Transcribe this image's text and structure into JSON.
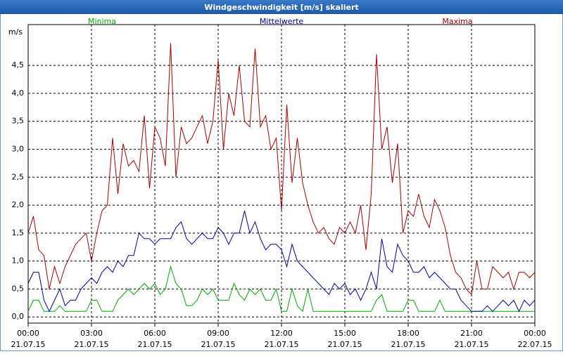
{
  "chart_data": {
    "type": "line",
    "title": "Windgeschwindigkeit [m/s] skaliert",
    "y_label": "m/s",
    "x": [
      0,
      0.25,
      0.5,
      0.75,
      1,
      1.25,
      1.5,
      1.75,
      2,
      2.25,
      2.5,
      2.75,
      3,
      3.25,
      3.5,
      3.75,
      4,
      4.25,
      4.5,
      4.75,
      5,
      5.25,
      5.5,
      5.75,
      6,
      6.25,
      6.5,
      6.75,
      7,
      7.25,
      7.5,
      7.75,
      8,
      8.25,
      8.5,
      8.75,
      9,
      9.25,
      9.5,
      9.75,
      10,
      10.25,
      10.5,
      10.75,
      11,
      11.25,
      11.5,
      11.75,
      12,
      12.25,
      12.5,
      12.75,
      13,
      13.25,
      13.5,
      13.75,
      14,
      14.25,
      14.5,
      14.75,
      15,
      15.25,
      15.5,
      15.75,
      16,
      16.25,
      16.5,
      16.75,
      17,
      17.25,
      17.5,
      17.75,
      18,
      18.25,
      18.5,
      18.75,
      19,
      19.25,
      19.5,
      19.75,
      20,
      20.25,
      20.5,
      20.75,
      21,
      21.25,
      21.5,
      21.75,
      22,
      22.25,
      22.5,
      22.75,
      23,
      23.25,
      23.5,
      23.75,
      24
    ],
    "series": [
      {
        "name": "Minima",
        "color": "#00aa00",
        "values": [
          0.1,
          0.3,
          0.3,
          0.1,
          0.1,
          0.1,
          0.2,
          0.1,
          0.1,
          0.1,
          0.1,
          0.1,
          0.3,
          0.3,
          0.1,
          0.1,
          0.1,
          0.3,
          0.4,
          0.5,
          0.4,
          0.5,
          0.6,
          0.5,
          0.6,
          0.4,
          0.5,
          0.9,
          0.6,
          0.5,
          0.2,
          0.2,
          0.3,
          0.5,
          0.4,
          0.5,
          0.3,
          0.3,
          0.3,
          0.6,
          0.4,
          0.3,
          0.5,
          0.4,
          0.5,
          0.3,
          0.3,
          0.5,
          0.1,
          0.1,
          0.5,
          0.2,
          0.1,
          0.5,
          0.1,
          0.1,
          0.1,
          0.1,
          0.1,
          0.1,
          0.1,
          0.1,
          0.1,
          0.1,
          0.1,
          0.1,
          0.3,
          0.4,
          0.1,
          0.1,
          0.1,
          0.1,
          0.3,
          0.3,
          0.1,
          0.1,
          0.1,
          0.1,
          0.3,
          0.1,
          0.1,
          0.1,
          0.1,
          0.1,
          0.1,
          0.1,
          0.1,
          0.1,
          0.1,
          0.1,
          0.1,
          0.1,
          0.1,
          0.1,
          0.1,
          0.1,
          0.1
        ]
      },
      {
        "name": "Mittelwerte",
        "color": "#0000aa",
        "values": [
          0.6,
          0.8,
          0.8,
          0.3,
          0.1,
          0.3,
          0.5,
          0.2,
          0.3,
          0.3,
          0.5,
          0.6,
          0.7,
          0.6,
          0.8,
          0.9,
          0.8,
          1.0,
          0.9,
          1.1,
          1.1,
          1.5,
          1.4,
          1.4,
          1.3,
          1.4,
          1.4,
          1.4,
          1.6,
          1.7,
          1.4,
          1.3,
          1.4,
          1.5,
          1.4,
          1.4,
          1.6,
          1.5,
          1.3,
          1.5,
          1.5,
          1.9,
          1.5,
          1.7,
          1.4,
          1.2,
          1.3,
          1.3,
          1.2,
          0.9,
          1.3,
          1.0,
          0.9,
          0.8,
          0.7,
          0.6,
          0.5,
          0.4,
          0.6,
          0.5,
          0.6,
          0.4,
          0.5,
          0.3,
          0.5,
          0.8,
          0.5,
          1.4,
          0.9,
          0.8,
          1.3,
          1.1,
          1.0,
          0.8,
          0.8,
          0.9,
          0.7,
          0.8,
          0.7,
          0.6,
          0.5,
          0.5,
          0.3,
          0.2,
          0.1,
          0.1,
          0.1,
          0.2,
          0.1,
          0.2,
          0.3,
          0.2,
          0.3,
          0.1,
          0.3,
          0.2,
          0.3
        ]
      },
      {
        "name": "Maxima",
        "color": "#aa0000",
        "values": [
          1.5,
          1.8,
          1.2,
          1.1,
          0.5,
          0.9,
          0.6,
          0.9,
          1.1,
          1.3,
          1.4,
          1.5,
          1.0,
          1.5,
          1.9,
          2.0,
          3.2,
          2.2,
          3.1,
          2.7,
          2.8,
          2.6,
          3.6,
          2.3,
          3.4,
          3.2,
          2.7,
          4.9,
          2.5,
          3.4,
          3.1,
          3.2,
          3.4,
          3.6,
          3.1,
          3.5,
          4.6,
          3.0,
          4.0,
          3.6,
          4.5,
          3.5,
          3.4,
          4.8,
          3.4,
          3.6,
          3.0,
          3.2,
          1.9,
          3.8,
          2.4,
          3.2,
          2.4,
          2.0,
          1.7,
          1.5,
          1.6,
          1.4,
          1.3,
          1.6,
          1.5,
          1.7,
          1.5,
          2.0,
          1.2,
          2.2,
          4.7,
          3.0,
          3.4,
          2.4,
          3.1,
          1.5,
          1.9,
          1.8,
          2.2,
          1.8,
          1.6,
          2.1,
          1.9,
          1.6,
          1.1,
          0.8,
          0.7,
          0.5,
          0.4,
          1.0,
          0.5,
          0.5,
          0.9,
          0.8,
          0.7,
          0.8,
          0.5,
          0.8,
          0.8,
          0.7,
          0.8
        ]
      }
    ],
    "xlim": [
      0,
      24
    ],
    "xticks": [
      {
        "value": 0,
        "label": [
          "00:00",
          "21.07.15"
        ]
      },
      {
        "value": 3,
        "label": [
          "03:00",
          "21.07.15"
        ]
      },
      {
        "value": 6,
        "label": [
          "06:00",
          "21.07.15"
        ]
      },
      {
        "value": 9,
        "label": [
          "09:00",
          "21.07.15"
        ]
      },
      {
        "value": 12,
        "label": [
          "12:00",
          "21.07.15"
        ]
      },
      {
        "value": 15,
        "label": [
          "15:00",
          "21.07.15"
        ]
      },
      {
        "value": 18,
        "label": [
          "18:00",
          "21.07.15"
        ]
      },
      {
        "value": 21,
        "label": [
          "21:00",
          "21.07.15"
        ]
      },
      {
        "value": 24,
        "label": [
          "00:00",
          "22.07.15"
        ]
      }
    ],
    "ylim": [
      -0.11,
      5.23
    ],
    "yticks": [
      {
        "value": 0,
        "label": "0,0"
      },
      {
        "value": 0.5,
        "label": "0,5"
      },
      {
        "value": 1,
        "label": "1,0"
      },
      {
        "value": 1.5,
        "label": "1,5"
      },
      {
        "value": 2,
        "label": "2,0"
      },
      {
        "value": 2.5,
        "label": "2,5"
      },
      {
        "value": 3,
        "label": "3,0"
      },
      {
        "value": 3.5,
        "label": "3,5"
      },
      {
        "value": 4,
        "label": "4,0"
      },
      {
        "value": 4.5,
        "label": "4,5"
      }
    ],
    "grid": true
  }
}
